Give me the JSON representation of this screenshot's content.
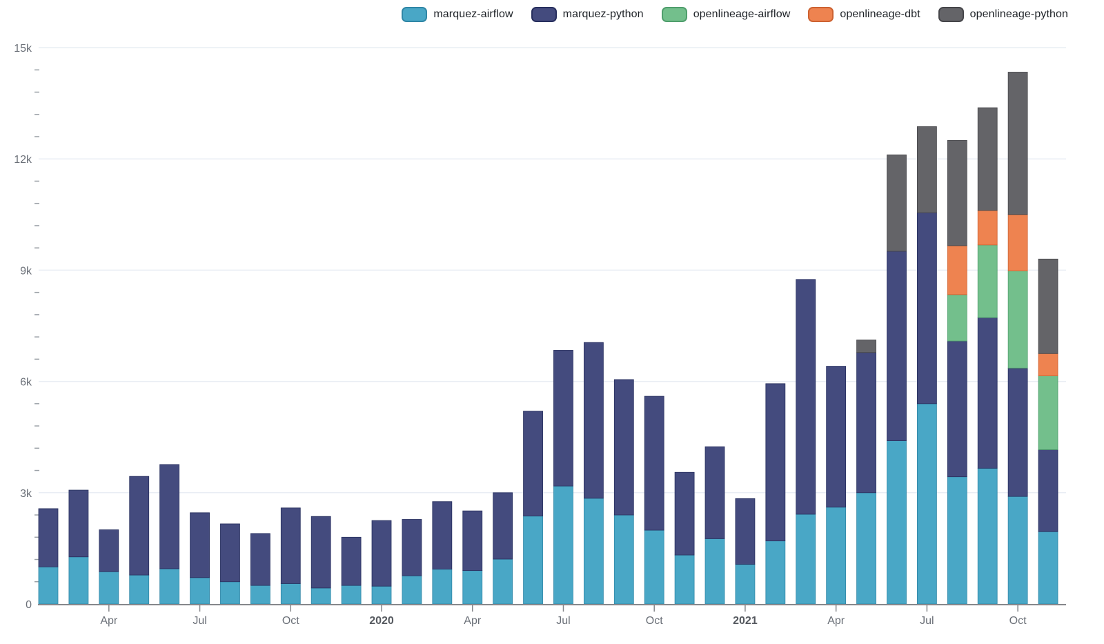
{
  "chart_data": {
    "type": "bar",
    "stacked": true,
    "title": "",
    "legend_position": "top-right",
    "grid": "horizontal",
    "x": [
      "Feb 2019",
      "Mar 2019",
      "Apr 2019",
      "May 2019",
      "Jun 2019",
      "Jul 2019",
      "Aug 2019",
      "Sep 2019",
      "Oct 2019",
      "Nov 2019",
      "Dec 2019",
      "Jan 2020",
      "Feb 2020",
      "Mar 2020",
      "Apr 2020",
      "May 2020",
      "Jun 2020",
      "Jul 2020",
      "Aug 2020",
      "Sep 2020",
      "Oct 2020",
      "Nov 2020",
      "Dec 2020",
      "Jan 2021",
      "Feb 2021",
      "Mar 2021",
      "Apr 2021",
      "May 2021",
      "Jun 2021",
      "Jul 2021",
      "Aug 2021",
      "Sep 2021",
      "Oct 2021",
      "Nov 2021"
    ],
    "series": [
      {
        "name": "marquez-airflow",
        "color": "#49A7C6",
        "border": "#2f86a6",
        "values": [
          1000,
          1270,
          870,
          780,
          950,
          710,
          600,
          500,
          550,
          430,
          500,
          480,
          760,
          940,
          900,
          1210,
          2370,
          3180,
          2850,
          2400,
          1990,
          1320,
          1760,
          1070,
          1700,
          2420,
          2610,
          3000,
          4400,
          5400,
          3430,
          3660,
          2900,
          1950
        ]
      },
      {
        "name": "marquez-python",
        "color": "#444B7E",
        "border": "#272f5e",
        "values": [
          1570,
          1800,
          1130,
          2660,
          2810,
          1750,
          1560,
          1400,
          2040,
          1930,
          1300,
          1770,
          1520,
          1820,
          1610,
          1790,
          2830,
          3660,
          4200,
          3650,
          3610,
          2230,
          2480,
          1770,
          4240,
          6330,
          3800,
          3780,
          5110,
          5150,
          3660,
          4060,
          3460,
          2210
        ]
      },
      {
        "name": "openlineage-airflow",
        "color": "#73BF8C",
        "border": "#4f9e6c",
        "values": [
          0,
          0,
          0,
          0,
          0,
          0,
          0,
          0,
          0,
          0,
          0,
          0,
          0,
          0,
          0,
          0,
          0,
          0,
          0,
          0,
          0,
          0,
          0,
          0,
          0,
          0,
          0,
          0,
          0,
          0,
          1250,
          1960,
          2620,
          1990
        ]
      },
      {
        "name": "openlineage-dbt",
        "color": "#EE8350",
        "border": "#cd6231",
        "values": [
          0,
          0,
          0,
          0,
          0,
          0,
          0,
          0,
          0,
          0,
          0,
          0,
          0,
          0,
          0,
          0,
          0,
          0,
          0,
          0,
          0,
          0,
          0,
          0,
          0,
          0,
          0,
          0,
          0,
          0,
          1320,
          930,
          1520,
          600
        ]
      },
      {
        "name": "openlineage-python",
        "color": "#646468",
        "border": "#46464a",
        "values": [
          0,
          0,
          0,
          0,
          0,
          0,
          0,
          0,
          0,
          0,
          0,
          0,
          0,
          0,
          0,
          0,
          0,
          0,
          0,
          0,
          0,
          0,
          0,
          0,
          0,
          0,
          0,
          340,
          2600,
          2320,
          2840,
          2770,
          3840,
          2550
        ]
      }
    ],
    "y_axis": {
      "min": 0,
      "max": 15000,
      "major_tick_interval": 3000,
      "minor_tick_interval": 600,
      "tick_labels": [
        "0",
        "3k",
        "6k",
        "9k",
        "12k",
        "15k"
      ]
    },
    "x_axis": {
      "ticks": [
        {
          "index": 2,
          "label": "Apr",
          "bold": false
        },
        {
          "index": 5,
          "label": "Jul",
          "bold": false
        },
        {
          "index": 8,
          "label": "Oct",
          "bold": false
        },
        {
          "index": 11,
          "label": "2020",
          "bold": true
        },
        {
          "index": 14,
          "label": "Apr",
          "bold": false
        },
        {
          "index": 17,
          "label": "Jul",
          "bold": false
        },
        {
          "index": 20,
          "label": "Oct",
          "bold": false
        },
        {
          "index": 23,
          "label": "2021",
          "bold": true
        },
        {
          "index": 26,
          "label": "Apr",
          "bold": false
        },
        {
          "index": 29,
          "label": "Jul",
          "bold": false
        },
        {
          "index": 32,
          "label": "Oct",
          "bold": false
        }
      ]
    }
  },
  "style": {
    "grid_color": "#e9edf4",
    "axis_color": "#85878b",
    "tick_color": "#9aa0a6",
    "background": "#ffffff"
  }
}
